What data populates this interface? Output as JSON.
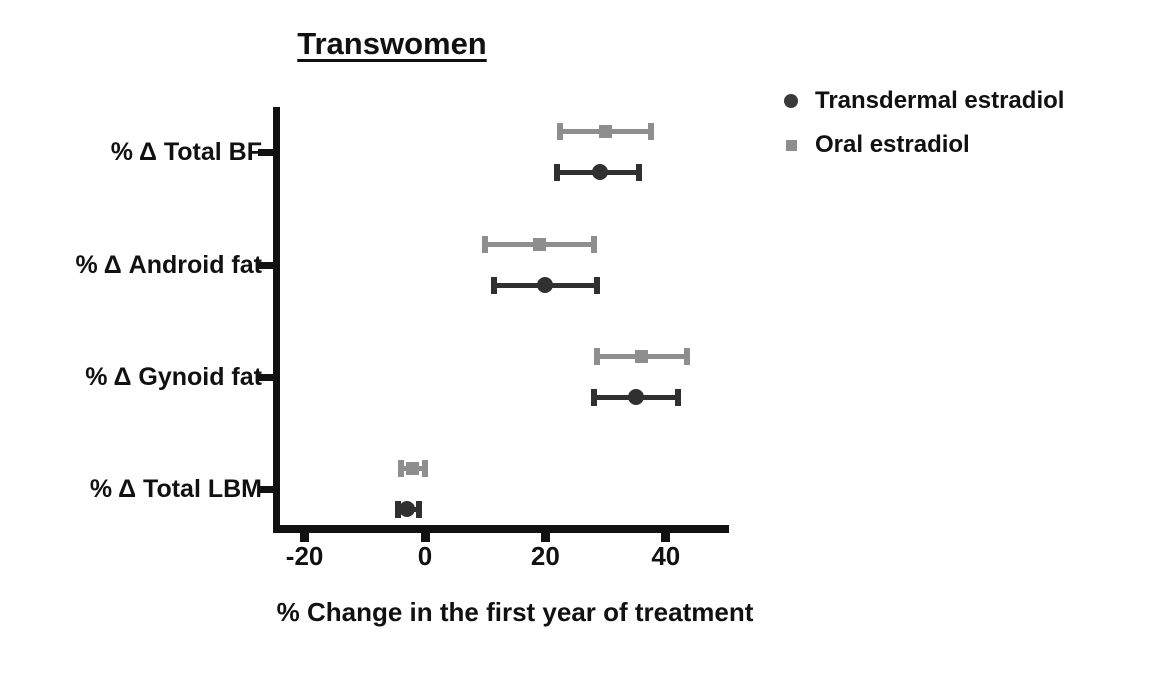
{
  "title": "Transwomen",
  "legend": {
    "items": [
      {
        "label": "Transdermal estradiol",
        "marker": "circle-icon",
        "color": "#3a3a3a"
      },
      {
        "label": "Oral estradiol",
        "marker": "square-icon",
        "color": "#8e8e8e"
      }
    ]
  },
  "chart_data": {
    "type": "scatter",
    "subtype": "horizontal-dot-plot-with-error-bars",
    "title": "Transwomen",
    "xlabel": "% Change in the first year of treatment",
    "xlim": [
      -25,
      50
    ],
    "xticks": [
      -20,
      0,
      20,
      40
    ],
    "grid": false,
    "legend_position": "top-right",
    "categories": [
      "% Δ Total BF",
      "% Δ Android fat",
      "% Δ Gynoid fat",
      "% Δ Total LBM"
    ],
    "series": [
      {
        "name": "Oral estradiol",
        "marker": "square",
        "color": "#8e8e8e",
        "values": [
          30,
          19,
          36,
          -2
        ],
        "ci_low": [
          22.5,
          10,
          28.5,
          -4
        ],
        "ci_high": [
          37.5,
          28,
          43.5,
          0
        ]
      },
      {
        "name": "Transdermal estradiol",
        "marker": "circle",
        "color": "#303030",
        "values": [
          29,
          20,
          35,
          -3
        ],
        "ci_low": [
          22,
          11.5,
          28,
          -4.5
        ],
        "ci_high": [
          35.5,
          28.5,
          42,
          -1
        ]
      }
    ]
  }
}
